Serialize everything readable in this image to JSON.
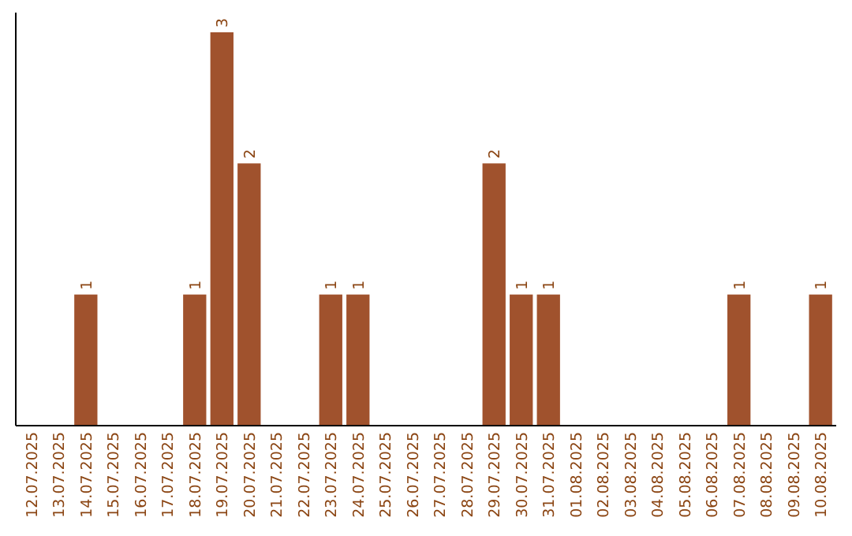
{
  "chart_data": {
    "type": "bar",
    "categories": [
      "12.07.2025",
      "13.07.2025",
      "14.07.2025",
      "15.07.2025",
      "16.07.2025",
      "17.07.2025",
      "18.07.2025",
      "19.07.2025",
      "20.07.2025",
      "21.07.2025",
      "22.07.2025",
      "23.07.2025",
      "24.07.2025",
      "25.07.2025",
      "26.07.2025",
      "27.07.2025",
      "28.07.2025",
      "29.07.2025",
      "30.07.2025",
      "31.07.2025",
      "01.08.2025",
      "02.08.2025",
      "03.08.2025",
      "04.08.2025",
      "05.08.2025",
      "06.08.2025",
      "07.08.2025",
      "08.08.2025",
      "09.08.2025",
      "10.08.2025"
    ],
    "values": [
      0,
      0,
      1,
      0,
      0,
      0,
      1,
      3,
      2,
      0,
      0,
      1,
      1,
      0,
      0,
      0,
      0,
      2,
      1,
      1,
      0,
      0,
      0,
      0,
      0,
      0,
      1,
      0,
      0,
      1
    ],
    "value_labels": [
      null,
      null,
      "1",
      null,
      null,
      null,
      "1",
      "3",
      "2",
      null,
      null,
      "1",
      "1",
      null,
      null,
      null,
      null,
      "2",
      "1",
      "1",
      null,
      null,
      null,
      null,
      null,
      null,
      "1",
      null,
      null,
      "1"
    ],
    "color": "#a0522d"
  }
}
